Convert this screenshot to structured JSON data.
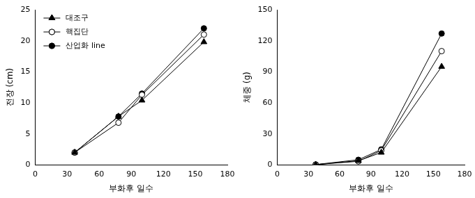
{
  "chart_data": [
    {
      "type": "line",
      "x_label": "부화후 일수",
      "y_label": "전장 (cm)",
      "x": [
        37,
        78,
        100,
        158
      ],
      "xlim": [
        0,
        180
      ],
      "xticks": [
        0,
        30,
        60,
        90,
        120,
        150,
        180
      ],
      "ylim": [
        0,
        25
      ],
      "yticks": [
        0,
        5,
        10,
        15,
        20,
        25
      ],
      "grid": false,
      "legend": "upper left",
      "series": [
        {
          "name": "대조구",
          "color": "#000000",
          "marker": "triangle",
          "values": [
            2.0,
            7.8,
            10.4,
            19.8
          ]
        },
        {
          "name": "핵집단",
          "color": "#000000",
          "marker": "circle_open",
          "values": [
            2.0,
            6.8,
            11.3,
            21.0
          ]
        },
        {
          "name": "산업화 line",
          "color": "#000000",
          "marker": "circle",
          "values": [
            2.0,
            7.8,
            11.5,
            22.0
          ]
        }
      ]
    },
    {
      "type": "line",
      "x_label": "부화후 일수",
      "y_label": "체중 (g)",
      "x": [
        37,
        78,
        100,
        158
      ],
      "xlim": [
        0,
        180
      ],
      "xticks": [
        0,
        30,
        60,
        90,
        120,
        150,
        180
      ],
      "ylim": [
        0,
        150
      ],
      "yticks": [
        0,
        30,
        60,
        90,
        120,
        150
      ],
      "grid": false,
      "series": [
        {
          "name": "대조구",
          "color": "#000000",
          "marker": "triangle",
          "values": [
            0.3,
            4,
            12,
            95
          ]
        },
        {
          "name": "핵집단",
          "color": "#000000",
          "marker": "circle_open",
          "values": [
            0.3,
            3.5,
            14,
            110
          ]
        },
        {
          "name": "산업화 line",
          "color": "#000000",
          "marker": "circle",
          "values": [
            0.4,
            5,
            15,
            127
          ]
        }
      ]
    }
  ]
}
